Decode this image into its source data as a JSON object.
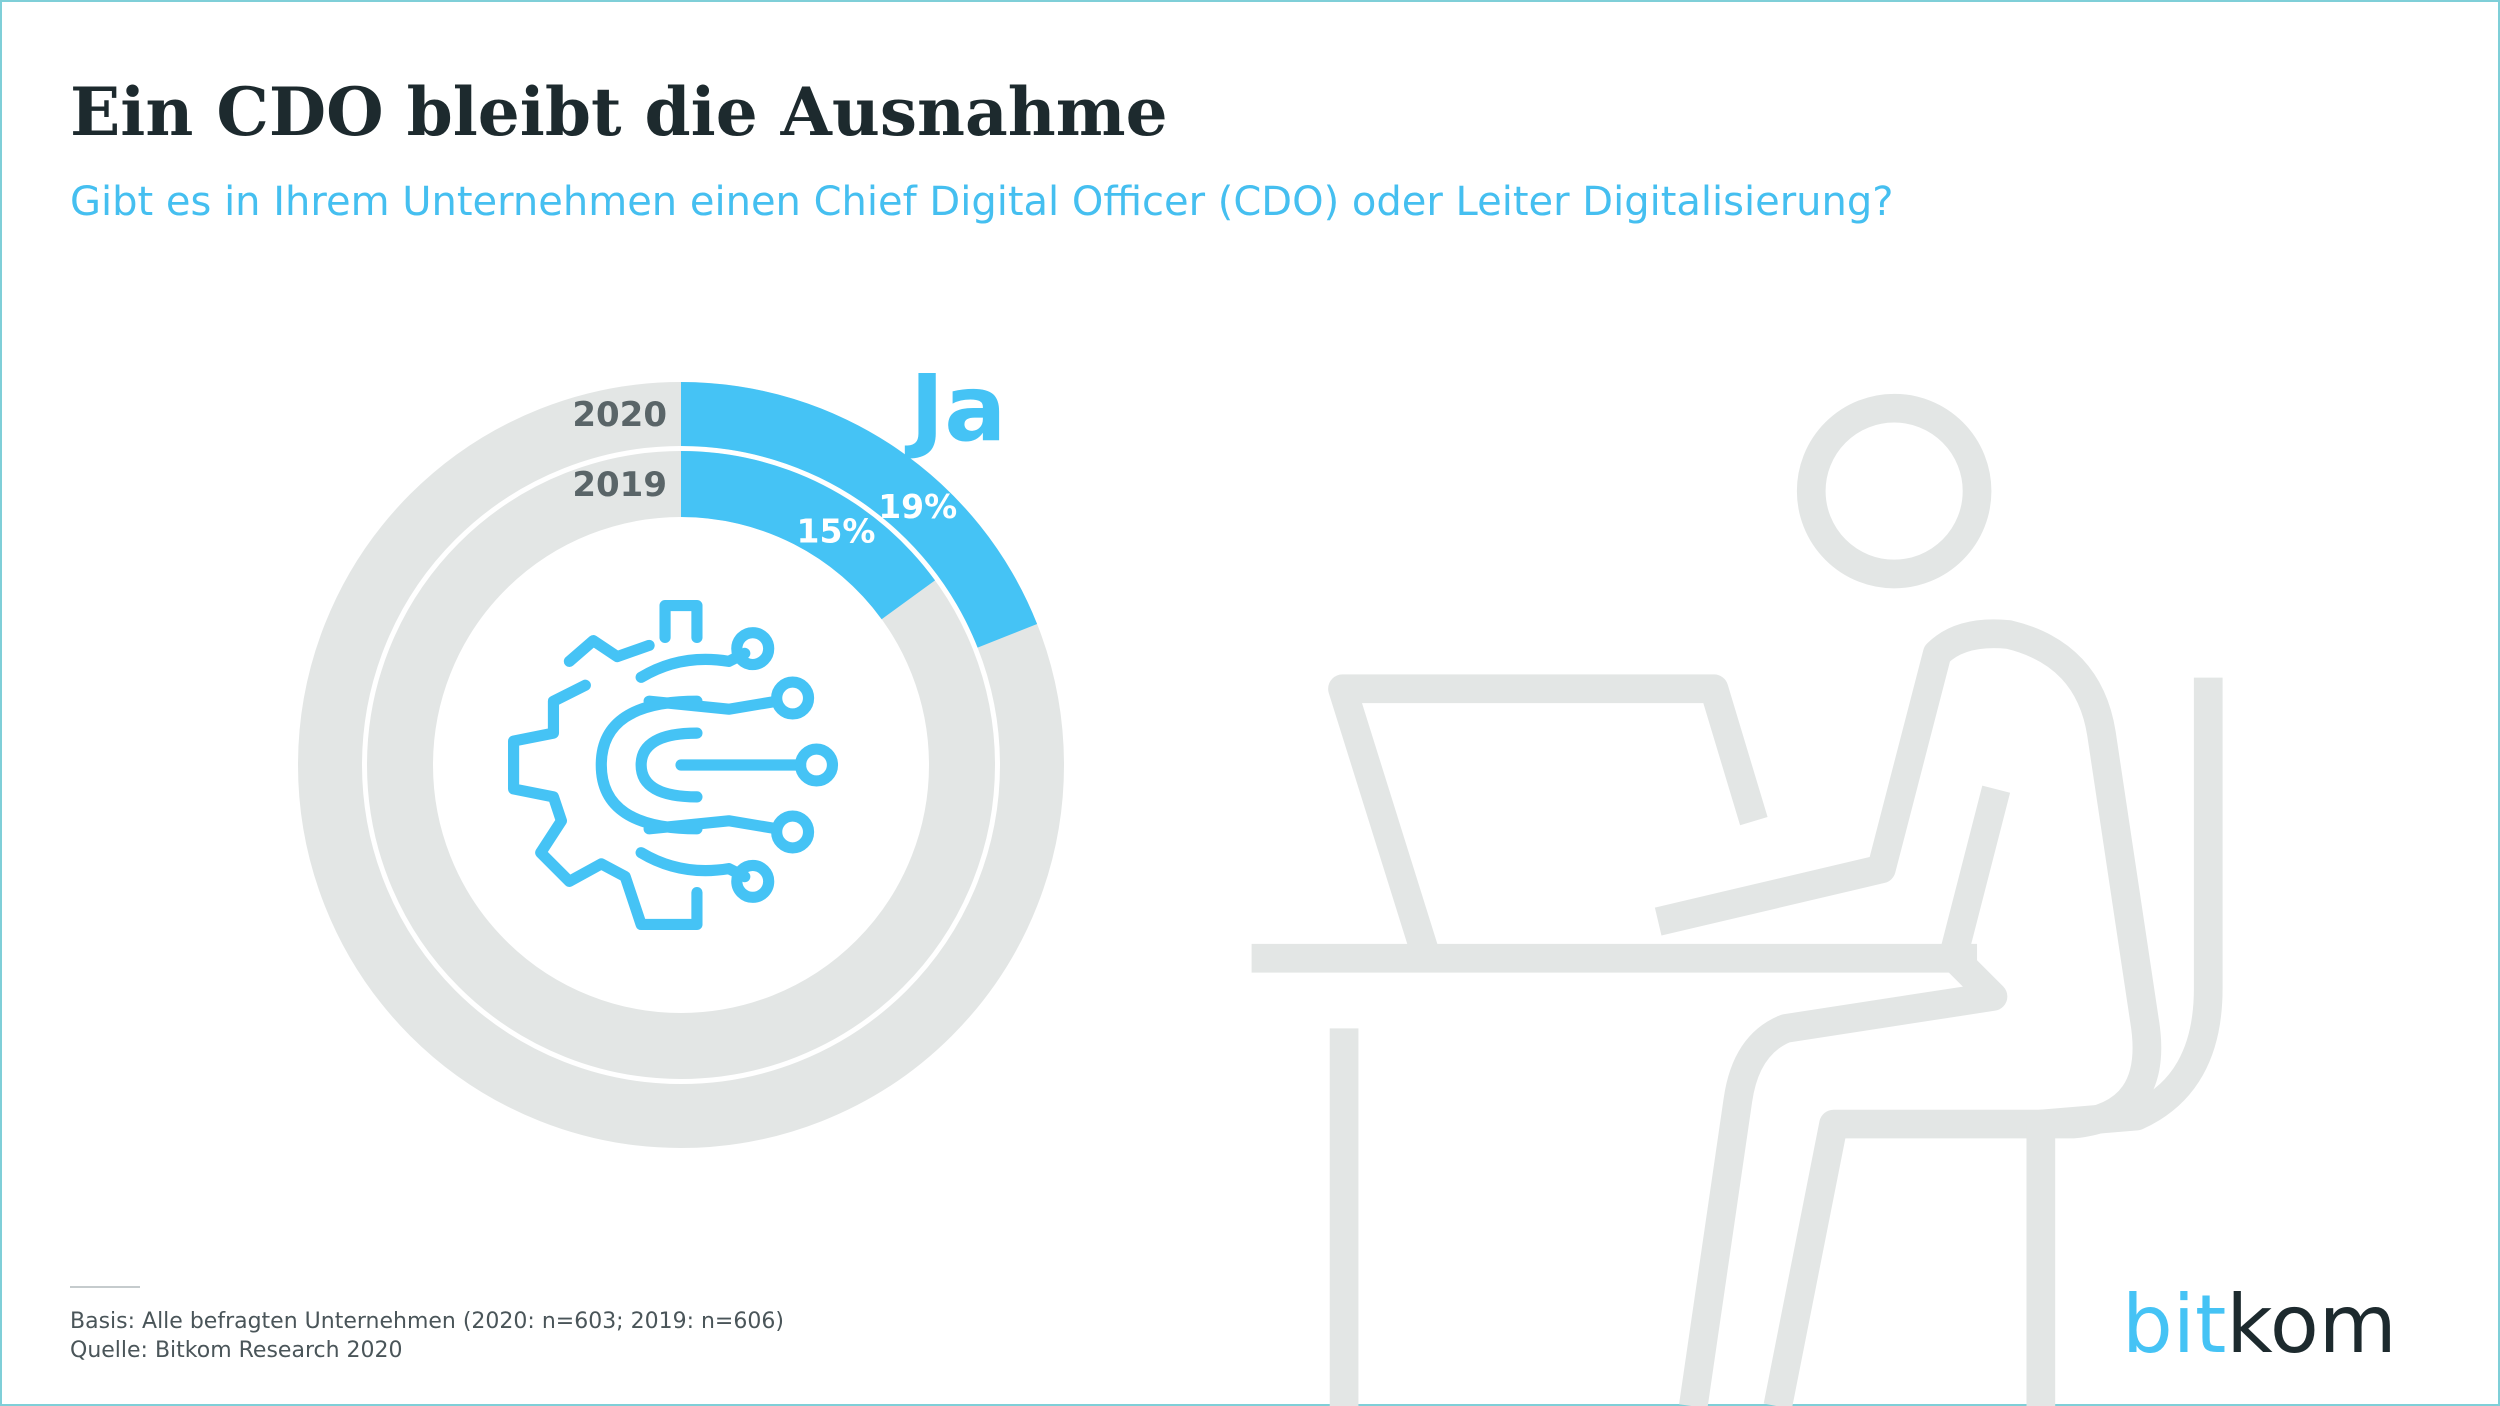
{
  "title": "Ein CDO bleibt die Ausnahme",
  "subtitle": "Gibt es in Ihrem Unternehmen einen Chief Digital Officer (CDO) oder Leiter Digitalisierung?",
  "chart_data": {
    "type": "donut",
    "category": "Ja",
    "ylim": [
      0,
      100
    ],
    "series": [
      {
        "name": "2020",
        "color": "#45c3f5",
        "values": [
          19
        ],
        "value_labels": [
          "19%"
        ]
      },
      {
        "name": "2019",
        "color": "#45c3f5",
        "values": [
          15
        ],
        "value_labels": [
          "15%"
        ]
      }
    ]
  },
  "footer": {
    "basis": "Basis: Alle befragten Unternehmen (2020: n=603; 2019: n=606)",
    "source": "Quelle: Bitkom Research 2020"
  },
  "logo": [
    "bit",
    "kom"
  ]
}
